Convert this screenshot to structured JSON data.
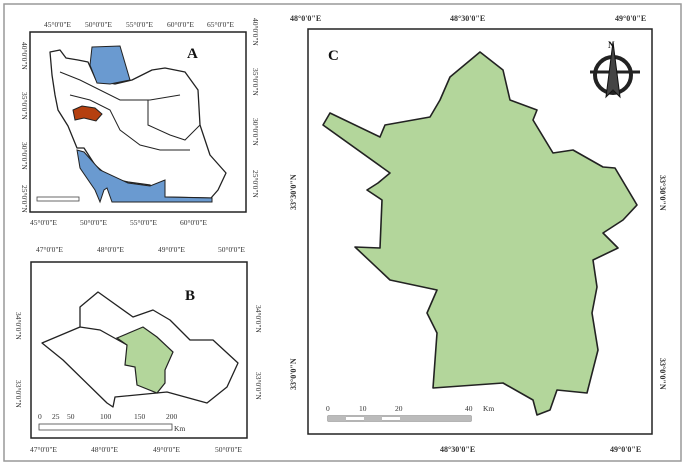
{
  "colors": {
    "study_area": "#b3d69b",
    "water": "#6a9ad0",
    "province": "#b5400f",
    "outline": "#222222"
  },
  "panel_a": {
    "label": "A",
    "top_lon": [
      "45°0'0\"E",
      "50°0'0\"E",
      "55°0'0\"E",
      "60°0'0\"E",
      "65°0'0\"E"
    ],
    "bottom_lon": [
      "45°0'0\"E",
      "50°0'0\"E",
      "55°0'0\"E",
      "60°0'0\"E"
    ],
    "lat": [
      "40°0'0\"N",
      "35°0'0\"N",
      "30°0'0\"N",
      "25°0'0\"N"
    ]
  },
  "panel_b": {
    "label": "B",
    "lon": [
      "47°0'0\"E",
      "48°0'0\"E",
      "49°0'0\"E",
      "50°0'0\"E"
    ],
    "lat": [
      "34°0'0\"N",
      "33°0'0\"N"
    ],
    "scale": [
      "0",
      "25",
      "50",
      "100",
      "150",
      "200"
    ],
    "scale_unit": "Km"
  },
  "panel_c": {
    "label": "C",
    "top_lon": [
      "48°0'0\"E",
      "48°30'0\"E",
      "49°0'0\"E"
    ],
    "bottom_lon": [
      "48°30'0\"E",
      "49°0'0\"E"
    ],
    "lat": [
      "33°30'0\"N",
      "33°0'0\"N"
    ],
    "scale": [
      "0",
      "10",
      "20",
      "40"
    ],
    "scale_unit": "Km",
    "north_arrow": "north-arrow-icon"
  }
}
